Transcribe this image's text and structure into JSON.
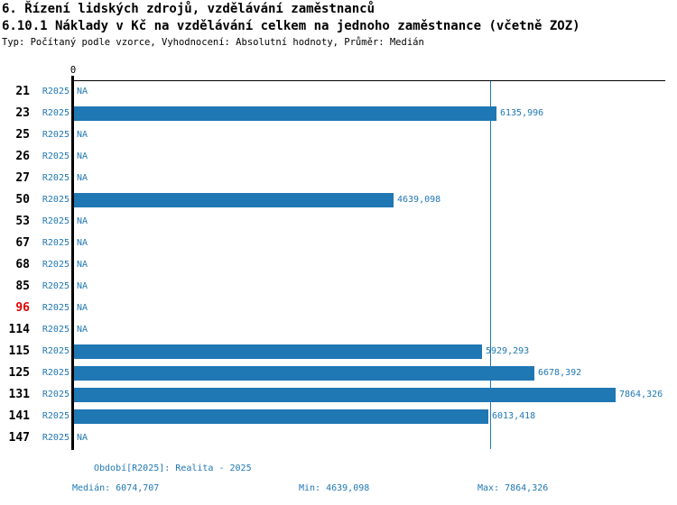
{
  "header": {
    "title1": "6. Řízení lidských zdrojů, vzdělávání zaměstnanců",
    "title2": "6.10.1 Náklady v Kč na vzdělávání celkem na jednoho zaměstnance (včetně ZOZ)",
    "meta": "Typ: Počítaný podle vzorce, Vyhodnocení: Absolutní hodnoty, Průměr: Medián"
  },
  "chart_data": {
    "type": "bar",
    "orientation": "horizontal",
    "title": "6.10.1 Náklady v Kč na vzdělávání celkem na jednoho zaměstnance (včetně ZOZ)",
    "xlabel": "",
    "ylabel": "",
    "axis_zero_label": "0",
    "xlim": [
      0,
      8600
    ],
    "grid": false,
    "legend_position": "none",
    "categories": [
      "21",
      "23",
      "25",
      "26",
      "27",
      "50",
      "53",
      "67",
      "68",
      "85",
      "96",
      "114",
      "115",
      "125",
      "131",
      "141",
      "147"
    ],
    "series": [
      {
        "name": "R2025",
        "values": [
          null,
          6135.996,
          null,
          null,
          null,
          4639.098,
          null,
          null,
          null,
          null,
          null,
          null,
          5929.293,
          6678.392,
          7864.326,
          6013.418,
          null
        ]
      }
    ],
    "value_labels": [
      "NA",
      "6135,996",
      "NA",
      "NA",
      "NA",
      "4639,098",
      "NA",
      "NA",
      "NA",
      "NA",
      "NA",
      "NA",
      "5929,293",
      "6678,392",
      "7864,326",
      "6013,418",
      "NA"
    ],
    "na_label": "NA",
    "period_label": "R2025",
    "highlighted_category": "96",
    "median": 6074.707,
    "min": 4639.098,
    "max": 7864.326,
    "median_line": true
  },
  "footer": {
    "period_line": "Období[R2025]: Realita - 2025",
    "median_label": "Medián: 6074,707",
    "min_label": "Min: 4639,098",
    "max_label": "Max: 7864,326"
  },
  "colors": {
    "bar": "#1f77b4",
    "text_blue": "#1f77b4",
    "highlight_red": "#dd0000",
    "axis": "#000000",
    "median_line": "#1f77b4",
    "title_text": "#000000"
  }
}
